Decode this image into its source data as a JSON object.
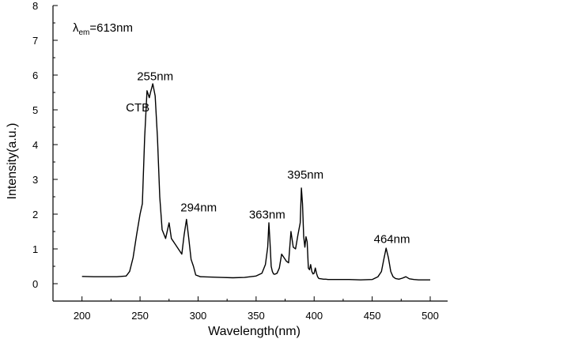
{
  "chart_data": {
    "type": "line",
    "xlabel": "Wavelength(nm)",
    "ylabel": "Intensity(a.u.)",
    "xlim": [
      175,
      515
    ],
    "ylim": [
      -0.5,
      8
    ],
    "x_ticks": [
      200,
      250,
      300,
      350,
      400,
      450,
      500
    ],
    "y_ticks": [
      0,
      1,
      2,
      3,
      4,
      5,
      6,
      7,
      8
    ],
    "grid": false,
    "legend": "none",
    "line_color": "#000000",
    "series": [
      {
        "x": [
          200,
          210,
          220,
          230,
          238,
          241,
          244,
          247,
          250,
          252,
          254,
          256,
          258,
          259,
          261,
          263,
          265,
          267,
          269,
          272,
          275,
          277,
          280,
          283,
          286,
          288,
          290,
          292,
          294,
          296,
          298,
          302,
          310,
          320,
          330,
          340,
          350,
          355,
          358,
          360,
          361,
          362,
          363,
          364,
          365,
          366,
          368,
          370,
          372,
          374,
          376,
          378,
          380,
          382,
          384,
          386,
          388,
          389,
          390,
          391,
          392,
          393,
          394,
          395,
          396,
          397,
          398,
          399,
          400,
          401,
          402,
          403,
          404,
          406,
          408,
          410,
          412,
          414,
          416,
          420,
          430,
          440,
          450,
          455,
          458,
          460,
          462,
          464,
          466,
          468,
          470,
          473,
          476,
          479,
          482,
          486,
          490,
          500
        ],
        "y": [
          0.21,
          0.2,
          0.2,
          0.2,
          0.22,
          0.35,
          0.75,
          1.4,
          2.0,
          2.3,
          4.2,
          5.55,
          5.35,
          5.5,
          5.75,
          5.4,
          4.2,
          2.5,
          1.55,
          1.3,
          1.75,
          1.3,
          1.15,
          1.0,
          0.85,
          1.4,
          1.85,
          1.3,
          0.7,
          0.5,
          0.25,
          0.2,
          0.19,
          0.18,
          0.17,
          0.18,
          0.22,
          0.3,
          0.55,
          1.05,
          1.75,
          1.15,
          0.5,
          0.35,
          0.28,
          0.27,
          0.3,
          0.45,
          0.85,
          0.75,
          0.65,
          0.6,
          1.5,
          1.05,
          1.0,
          1.4,
          1.75,
          2.75,
          2.3,
          1.35,
          1.05,
          1.35,
          1.2,
          0.45,
          0.4,
          0.55,
          0.35,
          0.28,
          0.3,
          0.45,
          0.3,
          0.2,
          0.15,
          0.14,
          0.13,
          0.13,
          0.12,
          0.12,
          0.12,
          0.12,
          0.12,
          0.11,
          0.12,
          0.2,
          0.35,
          0.7,
          1.02,
          0.75,
          0.35,
          0.2,
          0.15,
          0.13,
          0.16,
          0.2,
          0.14,
          0.12,
          0.11,
          0.11
        ]
      }
    ],
    "annotations": [
      {
        "text": "255nm",
        "x": 263,
        "y": 5.85,
        "anchor": "middle"
      },
      {
        "text": "CTB",
        "x": 248,
        "y": 4.95,
        "anchor": "middle"
      },
      {
        "text": "294nm",
        "x": 300.5,
        "y": 2.08,
        "anchor": "middle"
      },
      {
        "text": "363nm",
        "x": 359.5,
        "y": 1.88,
        "anchor": "middle"
      },
      {
        "text": "395nm",
        "x": 392.5,
        "y": 3.02,
        "anchor": "middle"
      },
      {
        "text": "464nm",
        "x": 467,
        "y": 1.17,
        "anchor": "middle"
      }
    ],
    "lambda_label": {
      "main": "λ",
      "sub": "em",
      "rest": "=613nm",
      "x": 192,
      "y": 7.25
    }
  }
}
